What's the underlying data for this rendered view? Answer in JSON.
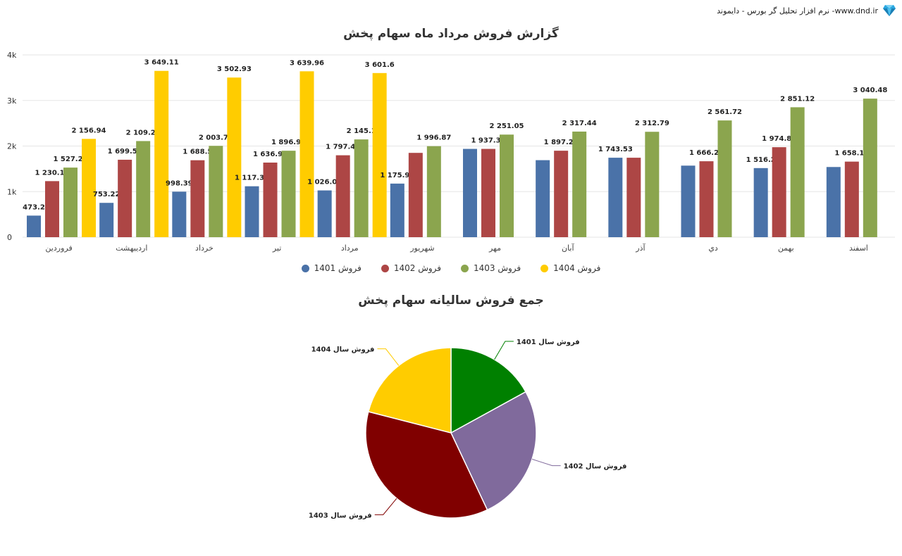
{
  "header": {
    "brand_text": "www.dnd.ir- نرم افزار تحلیل گر بورس - دایموند",
    "logo_icon": "diamond-icon"
  },
  "chart_data": [
    {
      "type": "bar",
      "title": "گزارش فروش مرداد ماه سهام پخش",
      "categories": [
        "فروردین",
        "اردیبهشت",
        "خرداد",
        "تیر",
        "مرداد",
        "شهریور",
        "مهر",
        "آبان",
        "آذر",
        "دي",
        "بهمن",
        "اسفند"
      ],
      "ylim": [
        0,
        4000
      ],
      "yticks": [
        0,
        1000,
        2000,
        3000,
        4000
      ],
      "ytick_labels": [
        "0",
        "1k",
        "2k",
        "3k",
        "4k"
      ],
      "grid": true,
      "legend_position": "bottom",
      "series": [
        {
          "name": "فروش 1401",
          "color": "#4a72a8",
          "values": [
            473.2,
            753.22,
            998.39,
            1117.38,
            1026.08,
            1175.92,
            1937.38,
            1690,
            1743.53,
            1570,
            1516.2,
            1540
          ],
          "labels": [
            "473.2",
            "753.22",
            "998.39",
            "1 117.38",
            "1 026.08",
            "1 175.92",
            "",
            "",
            "1 743.53",
            "",
            "1 516.2",
            ""
          ]
        },
        {
          "name": "فروش 1402",
          "color": "#ad4645",
          "values": [
            1230.14,
            1699.53,
            1688.5,
            1636.93,
            1797.49,
            1850,
            1937.38,
            1897.29,
            1743.53,
            1666.21,
            1974.81,
            1658.17
          ],
          "labels": [
            "1 230.14",
            "1 699.53",
            "1 688.5",
            "1 636.93",
            "1 797.49",
            "",
            "1 937.38",
            "1 897.29",
            "",
            "1 666.21",
            "1 974.81",
            "1 658.17"
          ]
        },
        {
          "name": "فروش 1403",
          "color": "#8ba54e",
          "values": [
            1527.22,
            2109.23,
            2003.78,
            1896.93,
            2145.1,
            1996.87,
            2251.05,
            2317.44,
            2312.79,
            2561.72,
            2851.12,
            3040.48
          ],
          "labels": [
            "1 527.22",
            "2 109.23",
            "2 003.78",
            "1 896.93",
            "2 145.1",
            "1 996.87",
            "2 251.05",
            "2 317.44",
            "2 312.79",
            "2 561.72",
            "2 851.12",
            "3 040.48"
          ]
        },
        {
          "name": "فروش 1404",
          "color": "#ffcc00",
          "values": [
            2156.94,
            3649.11,
            3502.93,
            3639.96,
            3601.6,
            null,
            null,
            null,
            null,
            null,
            null,
            null
          ],
          "labels": [
            "2 156.94",
            "3 649.11",
            "3 502.93",
            "3 639.96",
            "3 601.6",
            "",
            "",
            "",
            "",
            "",
            "",
            ""
          ]
        }
      ]
    },
    {
      "type": "pie",
      "title": "جمع فروش سالیانه سهام پخش",
      "slices": [
        {
          "label": "فروش سال 1401",
          "value": 17,
          "color": "#008000"
        },
        {
          "label": "فروش سال 1402",
          "value": 26,
          "color": "#806a9c"
        },
        {
          "label": "فروش سال 1403",
          "value": 36,
          "color": "#800000"
        },
        {
          "label": "فروش سال 1404",
          "value": 21,
          "color": "#ffcc00"
        }
      ]
    }
  ]
}
